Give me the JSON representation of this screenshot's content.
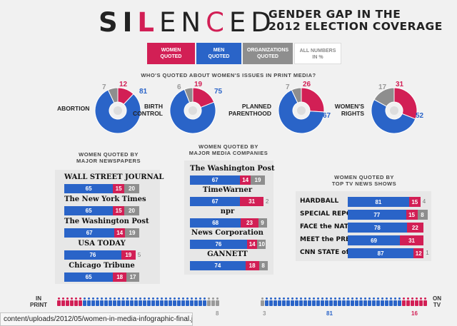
{
  "header": {
    "brand_parts": [
      "SI",
      "L",
      "EN",
      "C",
      "ED"
    ],
    "subtitle_lines": [
      "GENDER GAP IN THE",
      "2012 ELECTION COVERAGE"
    ]
  },
  "legend": {
    "women": [
      "WOMEN",
      "QUOTED"
    ],
    "men": [
      "MEN",
      "QUOTED"
    ],
    "orgs": [
      "ORGANIZATIONS",
      "QUOTED"
    ],
    "note": [
      "ALL NUMBERS",
      "IN %"
    ]
  },
  "colors": {
    "women": "#d21f55",
    "men": "#2a64c8",
    "orgs": "#8e8e8e"
  },
  "status_url": "content/uploads/2012/05/women-in-media-infographic-final.jpeg",
  "chart_data": [
    {
      "type": "pie",
      "title": "WHO'S QUOTED ABOUT WOMEN'S ISSUES IN PRINT MEDIA?",
      "items": [
        {
          "label": [
            "ABORTION"
          ],
          "orgs": 7,
          "women": 12,
          "men": 81
        },
        {
          "label": [
            "BIRTH",
            "CONTROL"
          ],
          "orgs": 6,
          "women": 19,
          "men": 75
        },
        {
          "label": [
            "PLANNED",
            "PARENTHOOD"
          ],
          "orgs": 7,
          "women": 26,
          "men": 67
        },
        {
          "label": [
            "WOMEN'S",
            "RIGHTS"
          ],
          "orgs": 17,
          "women": 31,
          "men": 52
        }
      ]
    },
    {
      "type": "bar",
      "title": [
        "WOMEN QUOTED BY",
        "MAJOR NEWSPAPERS"
      ],
      "rows": [
        {
          "name": "WALL STREET JOURNAL",
          "men": 65,
          "women": 15,
          "orgs": 20
        },
        {
          "name": "The New York Times",
          "men": 65,
          "women": 15,
          "orgs": 20
        },
        {
          "name": "The Washington Post",
          "men": 67,
          "women": 14,
          "orgs": 19
        },
        {
          "name": "USA TODAY",
          "men": 76,
          "women": 19,
          "orgs": 5
        },
        {
          "name": "Chicago Tribune",
          "men": 65,
          "women": 18,
          "orgs": 17
        }
      ]
    },
    {
      "type": "bar",
      "title": [
        "WOMEN QUOTED BY",
        "MAJOR MEDIA COMPANIES"
      ],
      "rows": [
        {
          "name": "The Washington Post",
          "men": 67,
          "women": 14,
          "orgs": 19
        },
        {
          "name": "TimeWarner",
          "men": 67,
          "women": 31,
          "orgs": 2
        },
        {
          "name": "npr",
          "men": 68,
          "women": 23,
          "orgs": 9
        },
        {
          "name": "News Corporation",
          "men": 76,
          "women": 14,
          "orgs": 10
        },
        {
          "name": "GANNETT",
          "men": 74,
          "women": 18,
          "orgs": 8
        }
      ]
    },
    {
      "type": "bar",
      "title": [
        "WOMEN QUOTED BY",
        "TOP TV NEWS SHOWS"
      ],
      "rows": [
        {
          "name": "HARDBALL",
          "men": 81,
          "women": 15,
          "orgs": 4
        },
        {
          "name": "SPECIAL REPORT",
          "men": 77,
          "women": 15,
          "orgs": 8
        },
        {
          "name": "FACE the NATION",
          "men": 78,
          "women": 22,
          "orgs": 0
        },
        {
          "name": "MEET the PRESS",
          "men": 69,
          "women": 31,
          "orgs": 0
        },
        {
          "name": "CNN STATE of the UNION",
          "men": 87,
          "women": 12,
          "orgs": 1
        }
      ]
    },
    {
      "type": "bar",
      "labels": {
        "print": [
          "IN",
          "PRINT"
        ],
        "tv": [
          "ON",
          "TV"
        ]
      },
      "print": {
        "orgs": 8
      },
      "tv": {
        "orgs": 3,
        "men": 81,
        "women": 16
      }
    }
  ]
}
